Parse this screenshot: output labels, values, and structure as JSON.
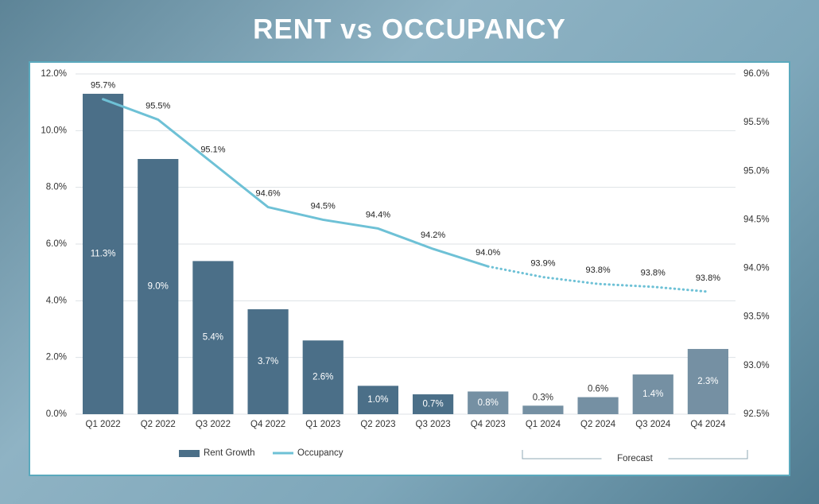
{
  "chart_data": {
    "type": "bar-line",
    "title": "RENT vs OCCUPANCY",
    "categories": [
      "Q1 2022",
      "Q2 2022",
      "Q3 2022",
      "Q4 2022",
      "Q1 2023",
      "Q2 2023",
      "Q3 2023",
      "Q4 2023",
      "Q1 2024",
      "Q2 2024",
      "Q3 2024",
      "Q4 2024"
    ],
    "series": [
      {
        "name": "Rent Growth",
        "type": "bar",
        "color": "#4b6f88",
        "bar_colors": [
          "#4b6f88",
          "#4b6f88",
          "#4b6f88",
          "#4b6f88",
          "#4b6f88",
          "#4b6f88",
          "#4b6f88",
          "#7590a3",
          "#7590a3",
          "#7590a3",
          "#7590a3",
          "#7590a3"
        ],
        "values": [
          11.3,
          9.0,
          5.4,
          3.7,
          2.6,
          1.0,
          0.7,
          0.8,
          0.3,
          0.6,
          1.4,
          2.3
        ],
        "value_labels": [
          "11.3%",
          "9.0%",
          "5.4%",
          "3.7%",
          "2.6%",
          "1.0%",
          "0.7%",
          "0.8%",
          "0.3%",
          "0.6%",
          "1.4%",
          "2.3%"
        ]
      },
      {
        "name": "Occupancy",
        "type": "line",
        "axis": "y2",
        "color": "#6ec1d6",
        "dashed_from_index": 7,
        "values": [
          95.74,
          95.53,
          95.08,
          94.63,
          94.5,
          94.41,
          94.2,
          94.02,
          93.91,
          93.84,
          93.81,
          93.76
        ],
        "value_labels": [
          "95.7%",
          "95.5%",
          "95.1%",
          "94.6%",
          "94.5%",
          "94.4%",
          "94.2%",
          "94.0%",
          "93.9%",
          "93.8%",
          "93.8%",
          "93.8%"
        ]
      }
    ],
    "ylim": [
      0,
      12
    ],
    "yticks": [
      {
        "value": 0,
        "label": "0.0%"
      },
      {
        "value": 2,
        "label": "2.0%"
      },
      {
        "value": 4,
        "label": "4.0%"
      },
      {
        "value": 6,
        "label": "6.0%"
      },
      {
        "value": 8,
        "label": "8.0%"
      },
      {
        "value": 10,
        "label": "10.0%"
      },
      {
        "value": 12,
        "label": "12.0%"
      }
    ],
    "y2lim": [
      92.5,
      96
    ],
    "y2ticks": [
      {
        "value": 92.5,
        "label": "92.5%"
      },
      {
        "value": 93,
        "label": "93.0%"
      },
      {
        "value": 93.5,
        "label": "93.5%"
      },
      {
        "value": 94,
        "label": "94.0%"
      },
      {
        "value": 94.5,
        "label": "94.5%"
      },
      {
        "value": 95,
        "label": "95.0%"
      },
      {
        "value": 95.5,
        "label": "95.5%"
      },
      {
        "value": 96,
        "label": "96.0%"
      }
    ],
    "grid": true,
    "annotation": "Forecast"
  }
}
